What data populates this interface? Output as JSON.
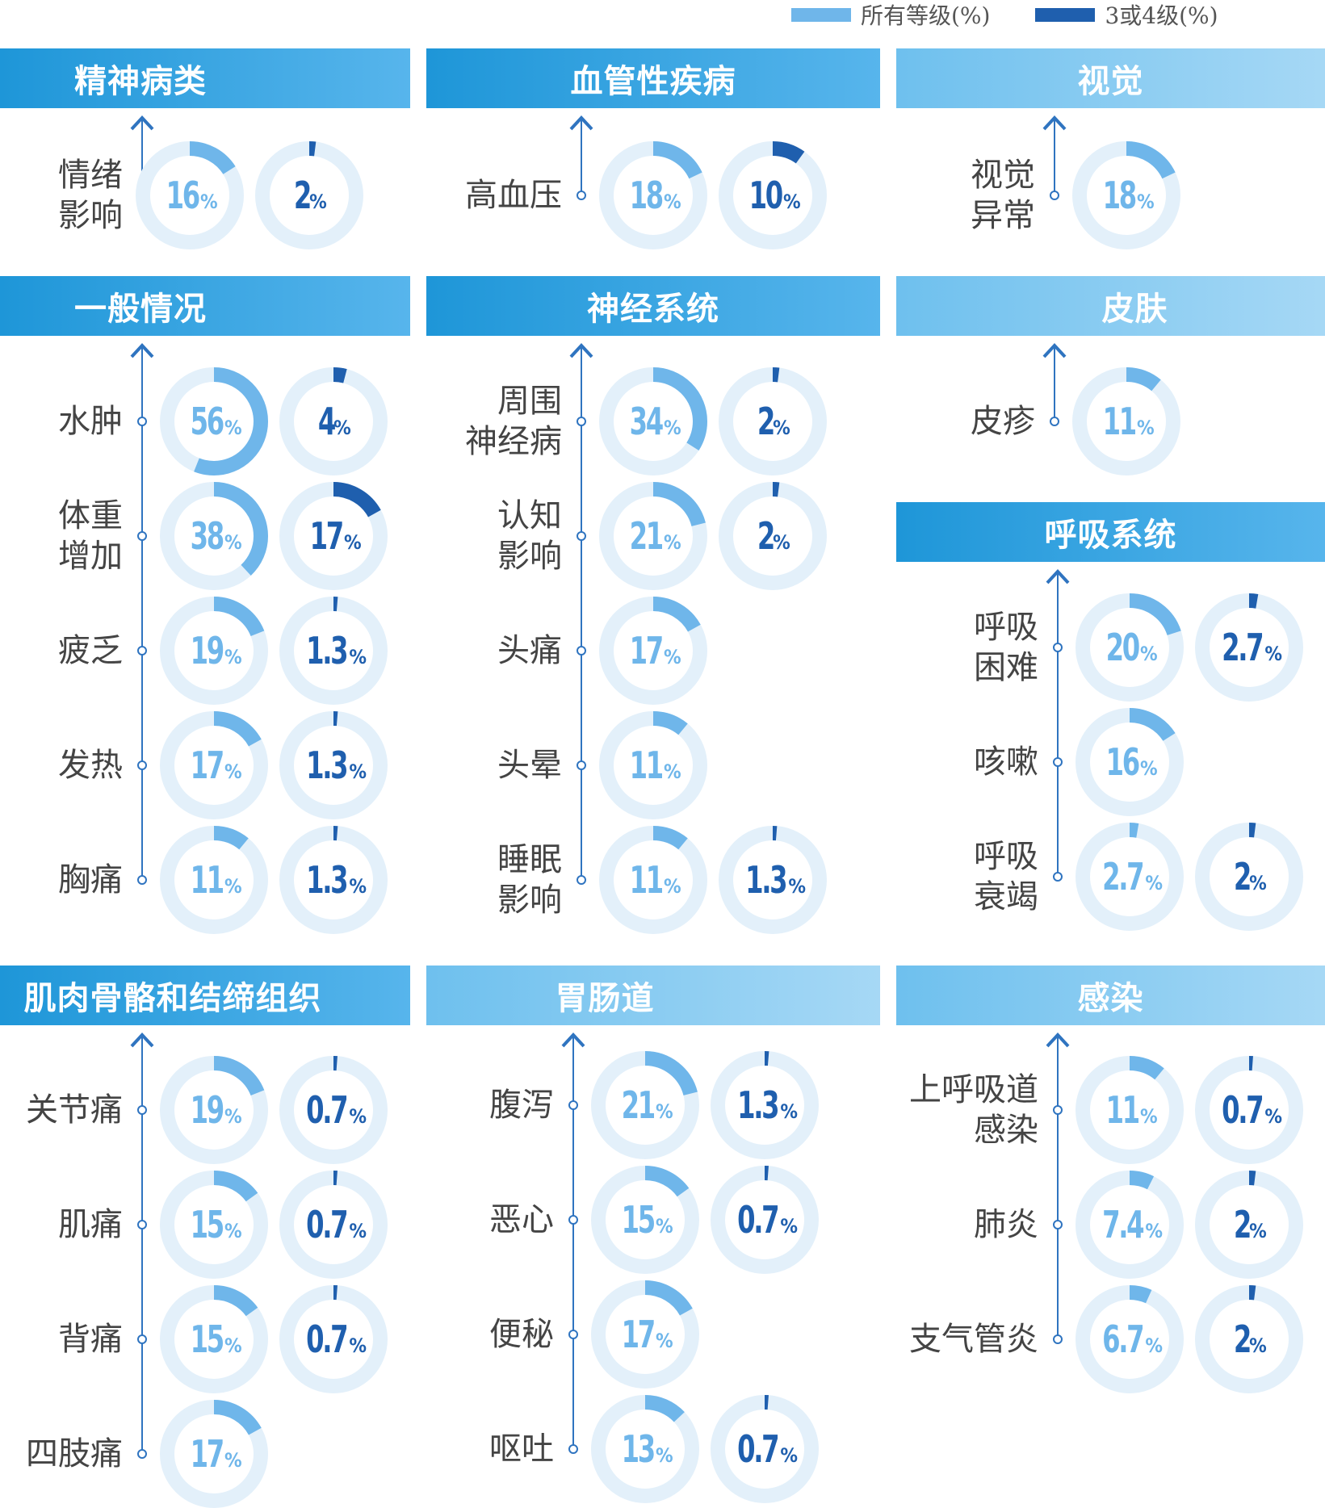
{
  "legend": [
    {
      "label": "所有等级(%)",
      "color": "#6fb6ea"
    },
    {
      "label": "3或4级(%)",
      "color": "#1f5fae"
    }
  ],
  "colors": {
    "all_grades": "#6fb6ea",
    "grade_3_4": "#1f5fae",
    "track": "#e3f0fa",
    "axis": "#2f74c0"
  },
  "chart_data": {
    "type": "donut-grid",
    "series": [
      {
        "name": "所有等级(%)"
      },
      {
        "name": "3或4级(%)"
      }
    ],
    "panels": [
      {
        "title": "精神病类",
        "rows": [
          {
            "label": [
              "情绪",
              "影响"
            ],
            "all": 16,
            "g34": 2
          }
        ]
      },
      {
        "title": "血管性疾病",
        "rows": [
          {
            "label": [
              "高血压"
            ],
            "all": 18,
            "g34": 10
          }
        ]
      },
      {
        "title": "视觉",
        "rows": [
          {
            "label": [
              "视觉",
              "异常"
            ],
            "all": 18,
            "g34": null
          }
        ]
      },
      {
        "title": "一般情况",
        "rows": [
          {
            "label": [
              "水肿"
            ],
            "all": 56,
            "g34": 4
          },
          {
            "label": [
              "体重",
              "增加"
            ],
            "all": 38,
            "g34": 17
          },
          {
            "label": [
              "疲乏"
            ],
            "all": 19,
            "g34": 1.3
          },
          {
            "label": [
              "发热"
            ],
            "all": 17,
            "g34": 1.3
          },
          {
            "label": [
              "胸痛"
            ],
            "all": 11,
            "g34": 1.3
          }
        ]
      },
      {
        "title": "神经系统",
        "rows": [
          {
            "label": [
              "周围",
              "神经病"
            ],
            "all": 34,
            "g34": 2
          },
          {
            "label": [
              "认知",
              "影响"
            ],
            "all": 21,
            "g34": 2
          },
          {
            "label": [
              "头痛"
            ],
            "all": 17,
            "g34": null
          },
          {
            "label": [
              "头晕"
            ],
            "all": 11,
            "g34": null
          },
          {
            "label": [
              "睡眠",
              "影响"
            ],
            "all": 11,
            "g34": 1.3
          }
        ]
      },
      {
        "title": "皮肤",
        "rows": [
          {
            "label": [
              "皮疹"
            ],
            "all": 11,
            "g34": null
          }
        ]
      },
      {
        "title": "呼吸系统",
        "rows": [
          {
            "label": [
              "呼吸",
              "困难"
            ],
            "all": 20,
            "g34": 2.7
          },
          {
            "label": [
              "咳嗽"
            ],
            "all": 16,
            "g34": null
          },
          {
            "label": [
              "呼吸",
              "衰竭"
            ],
            "all": 2.7,
            "g34": 2
          }
        ]
      },
      {
        "title": "肌肉骨骼和结缔组织",
        "rows": [
          {
            "label": [
              "关节痛"
            ],
            "all": 19,
            "g34": 0.7
          },
          {
            "label": [
              "肌痛"
            ],
            "all": 15,
            "g34": 0.7
          },
          {
            "label": [
              "背痛"
            ],
            "all": 15,
            "g34": 0.7
          },
          {
            "label": [
              "四肢痛"
            ],
            "all": 17,
            "g34": null
          }
        ]
      },
      {
        "title": "胃肠道",
        "rows": [
          {
            "label": [
              "腹泻"
            ],
            "all": 21,
            "g34": 1.3
          },
          {
            "label": [
              "恶心"
            ],
            "all": 15,
            "g34": 0.7
          },
          {
            "label": [
              "便秘"
            ],
            "all": 17,
            "g34": null
          },
          {
            "label": [
              "呕吐"
            ],
            "all": 13,
            "g34": 0.7
          }
        ]
      },
      {
        "title": "感染",
        "rows": [
          {
            "label": [
              "上呼吸道",
              "感染"
            ],
            "all": 11,
            "g34": 0.7
          },
          {
            "label": [
              "肺炎"
            ],
            "all": 7.4,
            "g34": 2
          },
          {
            "label": [
              "支气管炎"
            ],
            "all": 6.7,
            "g34": 2
          }
        ]
      }
    ]
  }
}
